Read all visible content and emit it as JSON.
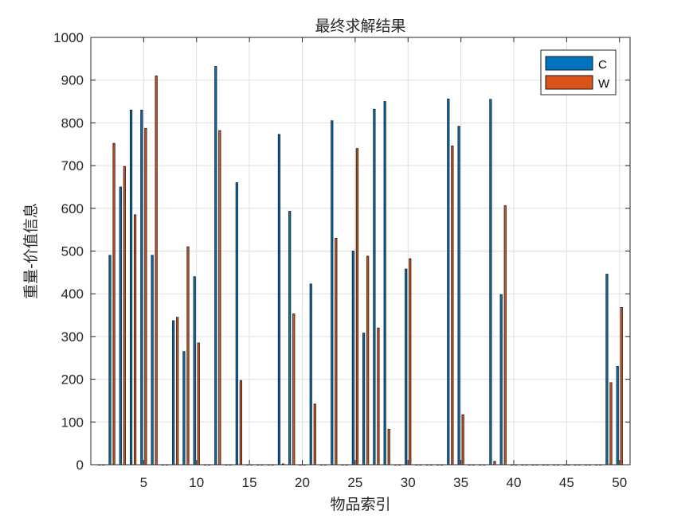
{
  "chart_data": {
    "type": "bar",
    "title": "最终求解结果",
    "xlabel": "物品索引",
    "ylabel": "重量-价值信息",
    "xlim": [
      0,
      51
    ],
    "ylim": [
      0,
      1000
    ],
    "x_ticks": [
      5,
      10,
      15,
      20,
      25,
      30,
      35,
      40,
      45,
      50
    ],
    "y_ticks": [
      0,
      100,
      200,
      300,
      400,
      500,
      600,
      700,
      800,
      900,
      1000
    ],
    "grid": true,
    "legend_position": "top-right",
    "x": [
      1,
      2,
      3,
      4,
      5,
      6,
      7,
      8,
      9,
      10,
      11,
      12,
      13,
      14,
      15,
      16,
      17,
      18,
      19,
      20,
      21,
      22,
      23,
      24,
      25,
      26,
      27,
      28,
      29,
      30,
      31,
      32,
      33,
      34,
      35,
      36,
      37,
      38,
      39,
      40,
      41,
      42,
      43,
      44,
      45,
      46,
      47,
      48,
      49,
      50
    ],
    "series": [
      {
        "name": "C",
        "color": "#0072BD",
        "values": [
          0,
          490,
          650,
          830,
          830,
          490,
          0,
          337,
          265,
          440,
          0,
          932,
          0,
          660,
          0,
          0,
          0,
          773,
          593,
          0,
          423,
          0,
          805,
          0,
          500,
          308,
          832,
          850,
          0,
          458,
          0,
          0,
          0,
          856,
          792,
          0,
          0,
          855,
          398,
          0,
          0,
          0,
          0,
          0,
          0,
          0,
          0,
          0,
          446,
          230
        ]
      },
      {
        "name": "W",
        "color": "#D95319",
        "values": [
          0,
          752,
          698,
          585,
          787,
          910,
          0,
          345,
          510,
          285,
          0,
          782,
          0,
          197,
          0,
          0,
          0,
          2,
          353,
          0,
          142,
          0,
          530,
          0,
          740,
          488,
          320,
          83,
          0,
          482,
          0,
          0,
          0,
          746,
          117,
          0,
          0,
          8,
          606,
          0,
          0,
          0,
          0,
          0,
          0,
          0,
          0,
          0,
          192,
          368
        ]
      }
    ]
  }
}
